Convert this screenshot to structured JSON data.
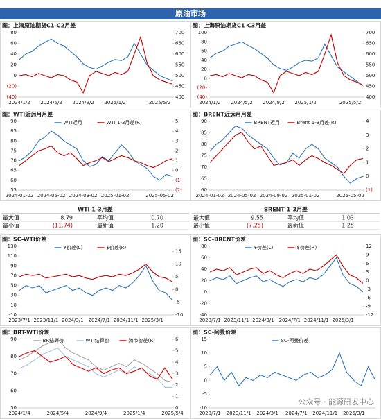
{
  "header": "原油市场",
  "watermark": "公众号 · 能源研发中心",
  "chart_data": [
    {
      "type": "line",
      "title": "图：上海原油期货C1-C2月差",
      "categories": [
        "2024/1/2",
        null,
        null,
        null,
        null,
        "2024/5/2",
        null,
        null,
        null,
        null,
        "2024/9/2",
        null,
        null,
        null,
        null,
        "2025/1/2",
        null,
        null,
        null,
        null,
        null,
        null,
        "2025/5/2",
        null,
        null
      ],
      "ylim": [
        -40,
        80
      ],
      "yticks": [
        {
          "value": -40,
          "label": "(40)"
        },
        {
          "value": -20,
          "label": "(20)"
        },
        0,
        20,
        40,
        60,
        80
      ],
      "y2lim": [
        400,
        700
      ],
      "y2ticks": [
        400,
        450,
        500,
        550,
        600,
        650,
        700
      ],
      "series": [
        {
          "color": "#2e75b6",
          "values": [
            30,
            40,
            45,
            55,
            62,
            68,
            60,
            55,
            45,
            35,
            22,
            15,
            12,
            18,
            25,
            30,
            28,
            35,
            60,
            40,
            20,
            10,
            0,
            -5,
            -10
          ]
        },
        {
          "color": "#c00000",
          "axis": "y2",
          "values": [
            500,
            505,
            495,
            510,
            500,
            490,
            505,
            500,
            480,
            470,
            420,
            500,
            520,
            510,
            500,
            515,
            505,
            520,
            600,
            680,
            560,
            500,
            480,
            470,
            460
          ]
        }
      ]
    },
    {
      "type": "line",
      "title": "图：上海原油期货C1-C3月差",
      "categories": [
        "2024/1/2",
        null,
        null,
        null,
        null,
        "2024/5/2",
        null,
        null,
        null,
        null,
        "2024/9/2",
        null,
        null,
        null,
        null,
        "2025/1/2",
        null,
        null,
        null,
        null,
        null,
        null,
        "2025/5/2",
        null,
        null
      ],
      "ylim": [
        -40,
        100
      ],
      "yticks": [
        {
          "value": -40,
          "label": "(40)"
        },
        {
          "value": -20,
          "label": "(20)"
        },
        0,
        20,
        40,
        60,
        80,
        100
      ],
      "y2lim": [
        400,
        700
      ],
      "y2ticks": [
        400,
        450,
        500,
        550,
        600,
        650,
        700
      ],
      "series": [
        {
          "color": "#2e75b6",
          "values": [
            45,
            55,
            60,
            70,
            75,
            80,
            72,
            65,
            55,
            45,
            30,
            22,
            18,
            25,
            35,
            40,
            38,
            45,
            75,
            50,
            25,
            15,
            5,
            -5,
            -15
          ]
        },
        {
          "color": "#c00000",
          "axis": "y2",
          "values": [
            500,
            505,
            495,
            510,
            500,
            490,
            505,
            500,
            480,
            470,
            420,
            500,
            520,
            510,
            500,
            515,
            505,
            520,
            600,
            690,
            560,
            500,
            480,
            470,
            455
          ]
        }
      ]
    },
    {
      "type": "line",
      "title": "图：WTI近远月月差",
      "categories": [
        "2024-01-02",
        null,
        null,
        null,
        null,
        "2024-05-02",
        null,
        null,
        null,
        null,
        "2024-09-02",
        null,
        null,
        null,
        null,
        "2025-01-02",
        null,
        null,
        null,
        null,
        null,
        null,
        "2025-05-02",
        null,
        null
      ],
      "ylim": [
        55,
        90
      ],
      "yticks": [
        55,
        60,
        65,
        70,
        75,
        80,
        85,
        90
      ],
      "y2lim": [
        -2,
        5
      ],
      "y2ticks": [
        {
          "value": -2,
          "label": "(2)"
        },
        {
          "value": -1,
          "label": "(1)"
        },
        0,
        1,
        2,
        3,
        4,
        5
      ],
      "series": [
        {
          "name": "WTI近月",
          "color": "#2e75b6",
          "values": [
            70,
            72,
            75,
            80,
            82,
            85,
            83,
            80,
            78,
            76,
            70,
            67,
            68,
            72,
            70,
            74,
            78,
            75,
            70,
            68,
            66,
            62,
            60,
            63,
            62
          ]
        },
        {
          "name": "WTI 1-3月差(R)",
          "color": "#c00000",
          "axis": "y2",
          "values": [
            0.5,
            1,
            1.5,
            2,
            2.2,
            2.5,
            1.8,
            1.5,
            1.8,
            1.2,
            0.5,
            0.8,
            1,
            1.3,
            0.9,
            1.2,
            1.5,
            1.3,
            1,
            0.8,
            0.5,
            0.3,
            0.6,
            1,
            1.2
          ]
        }
      ]
    },
    {
      "type": "line",
      "title": "图：BRENT近远月月差",
      "categories": [
        "2024-01-02",
        null,
        null,
        null,
        null,
        "2024-05-02",
        null,
        null,
        null,
        null,
        "2024-09-02",
        null,
        null,
        null,
        null,
        "2025-01-02",
        null,
        null,
        null,
        null,
        null,
        null,
        "2025-05-02",
        null,
        null
      ],
      "ylim": [
        60,
        90
      ],
      "yticks": [
        60,
        65,
        70,
        75,
        80,
        85,
        90
      ],
      "y2lim": [
        -1,
        4
      ],
      "y2ticks": [
        {
          "value": -1,
          "label": "(1)"
        },
        0,
        1,
        2,
        3,
        4
      ],
      "series": [
        {
          "name": "BRENT近月",
          "color": "#2e75b6",
          "values": [
            77,
            80,
            82,
            85,
            88,
            87,
            84,
            82,
            80,
            78,
            74,
            71,
            72,
            76,
            74,
            78,
            80,
            78,
            74,
            72,
            70,
            66,
            63,
            65,
            66
          ]
        },
        {
          "name": "Brent 1-3月差(R)",
          "color": "#c00000",
          "axis": "y2",
          "values": [
            1,
            1.5,
            2,
            2.5,
            3,
            3.2,
            2.5,
            2,
            2.2,
            1.5,
            0.8,
            0.9,
            1,
            1.2,
            0.8,
            1.2,
            1.5,
            1.3,
            1,
            0.8,
            0.5,
            0.2,
            0.8,
            1.2,
            1.3
          ]
        }
      ]
    },
    {
      "type": "line",
      "title": "图：SC-WTI价差",
      "categories": [
        "2023/7/1",
        null,
        null,
        null,
        "2023/11/1",
        null,
        null,
        null,
        "2024/3/1",
        null,
        null,
        null,
        "2024/7/1",
        null,
        null,
        null,
        "2024/11/1",
        null,
        null,
        null,
        "2025/3/1",
        null,
        null,
        null
      ],
      "ylim": [
        -10,
        130
      ],
      "yticks": [
        -10,
        10,
        30,
        50,
        70,
        90,
        110,
        130
      ],
      "y2lim": [
        -10,
        17
      ],
      "y2ticks": [
        -10,
        -5,
        0,
        5,
        10,
        15
      ],
      "series": [
        {
          "name": "¥价差(L)",
          "color": "#2e75b6",
          "values": [
            40,
            50,
            45,
            50,
            35,
            40,
            45,
            50,
            40,
            45,
            35,
            30,
            40,
            45,
            40,
            50,
            45,
            55,
            70,
            90,
            60,
            40,
            35,
            20
          ]
        },
        {
          "name": "$价差(R)",
          "color": "#c00000",
          "axis": "y2",
          "values": [
            5,
            6,
            5.5,
            6,
            4.5,
            5,
            5.5,
            6,
            5,
            5.5,
            4.5,
            4,
            5,
            5.5,
            5,
            6,
            5.5,
            6.5,
            8,
            10,
            7,
            5,
            4.5,
            3
          ]
        }
      ]
    },
    {
      "type": "line",
      "title": "图：SC-BRENT价差",
      "categories": [
        "2023/7/1",
        null,
        null,
        null,
        "2023/11/1",
        null,
        null,
        null,
        "2024/3/1",
        null,
        null,
        null,
        "2024/7/1",
        null,
        null,
        null,
        "2024/11/1",
        null,
        null,
        null,
        "2025/3/1",
        null,
        null,
        null
      ],
      "ylim": [
        -40,
        80
      ],
      "yticks": [
        -40,
        -20,
        0,
        20,
        40,
        60,
        80
      ],
      "y2lim": [
        -12,
        12
      ],
      "y2ticks": [
        -12,
        -9,
        -6,
        -3,
        0,
        3,
        6,
        9,
        12
      ],
      "series": [
        {
          "name": "¥价差(L)",
          "color": "#2e75b6",
          "values": [
            20,
            25,
            22,
            28,
            15,
            20,
            25,
            28,
            18,
            22,
            15,
            10,
            18,
            22,
            18,
            25,
            22,
            30,
            45,
            60,
            30,
            15,
            10,
            0
          ]
        },
        {
          "name": "$价差(R)",
          "color": "#c00000",
          "axis": "y2",
          "values": [
            3,
            4,
            3.5,
            4.5,
            2,
            3,
            4,
            4.5,
            2.5,
            3.5,
            2,
            1,
            2.5,
            3.5,
            2.5,
            4,
            3.5,
            5,
            7,
            9,
            5,
            2,
            1,
            -1
          ]
        }
      ]
    },
    {
      "type": "line",
      "title": "图：BRT-WTI价差",
      "categories": [
        "2024/1/4",
        null,
        null,
        null,
        null,
        "2024/5/4",
        null,
        null,
        null,
        null,
        "2024/9/4",
        null,
        null,
        null,
        null,
        "2025/1/4",
        null,
        null,
        null,
        null,
        "2025/5/4"
      ],
      "ylim": [
        50,
        90
      ],
      "yticks": [
        50,
        60,
        70,
        80,
        90
      ],
      "y2lim": [
        0,
        6
      ],
      "y2ticks": [
        0,
        1,
        2,
        3,
        4,
        5,
        6
      ],
      "series": [
        {
          "name": "BR结算价",
          "color": "#a6a6a6",
          "values": [
            78,
            80,
            83,
            86,
            88,
            90,
            85,
            82,
            80,
            78,
            74,
            72,
            74,
            76,
            74,
            78,
            76,
            73,
            70,
            66,
            65
          ]
        },
        {
          "name": "WTI结算价",
          "color": "#9dc3e6",
          "values": [
            73,
            75,
            78,
            81,
            83,
            85,
            80,
            78,
            76,
            74,
            70,
            68,
            70,
            72,
            70,
            74,
            72,
            70,
            67,
            62,
            62
          ]
        },
        {
          "name": "跨市价差(R)",
          "color": "#e00000",
          "axis": "y2",
          "values": [
            4.5,
            4.8,
            5,
            4.5,
            4,
            4.2,
            4.5,
            3.8,
            3.5,
            3.2,
            3.5,
            3,
            3.3,
            3.5,
            3,
            3.2,
            3.5,
            2.8,
            2.5,
            3.5,
            2.5
          ]
        }
      ]
    },
    {
      "type": "line",
      "title": "图：SC-阿曼价差",
      "categories": [
        "2023/7/1",
        null,
        null,
        null,
        "2023/11/1",
        null,
        null,
        null,
        "2024/3/1",
        null,
        null,
        null,
        "2024/7/1",
        null,
        null,
        null,
        "2024/11/1",
        null,
        null,
        null,
        "2025/3/1",
        null,
        null,
        null
      ],
      "ylim": [
        -10,
        15
      ],
      "yticks": [
        -10,
        -5,
        0,
        5,
        10,
        15
      ],
      "series": [
        {
          "name": "SC-阿曼价差",
          "color": "#2e75b6",
          "values": [
            2,
            5,
            0,
            3,
            -2,
            1,
            0,
            2,
            1,
            3,
            2,
            1,
            0,
            2,
            3,
            1,
            2,
            4,
            10,
            3,
            0,
            -2,
            5,
            0
          ]
        }
      ]
    }
  ],
  "tables": [
    {
      "title": "WTI 1-3月差",
      "rows": [
        [
          "最大值",
          "8.79",
          "平均值",
          "0.70"
        ],
        [
          "最小值",
          "(11.74)",
          "最新值",
          "1.20"
        ]
      ]
    },
    {
      "title": "BRENT 1-3月差",
      "rows": [
        [
          "最大值",
          "9.55",
          "平均值",
          "1.03"
        ],
        [
          "最小值",
          "(7.25)",
          "最新值",
          "1.25"
        ]
      ]
    }
  ]
}
